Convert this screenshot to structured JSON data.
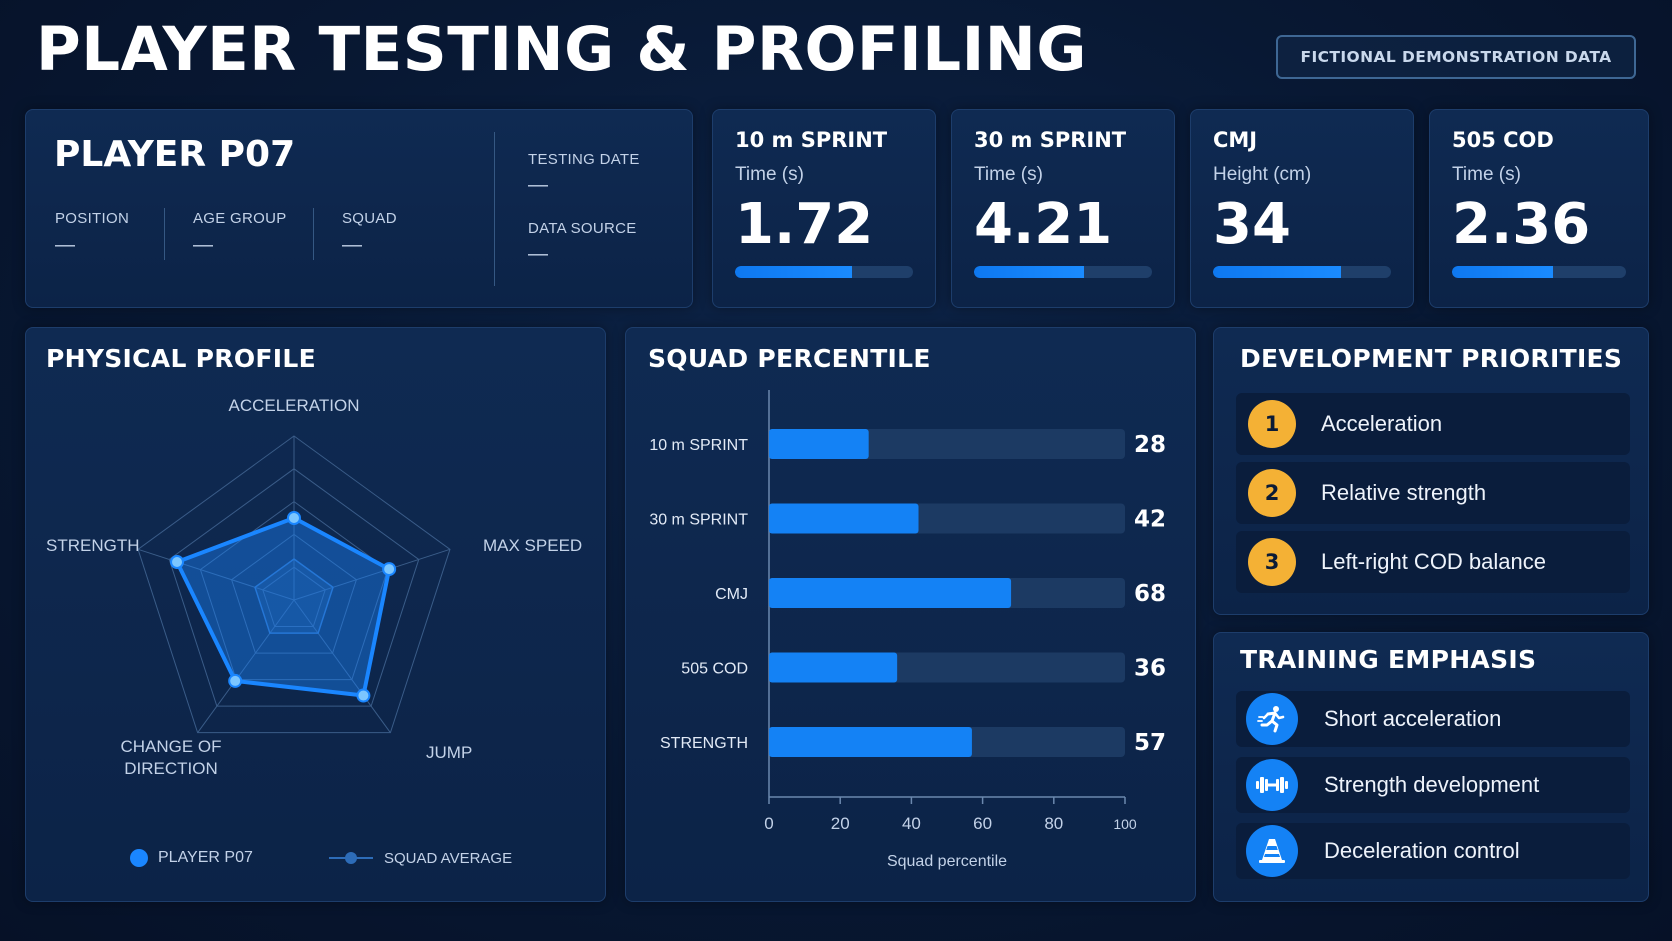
{
  "header": {
    "title": "PLAYER TESTING & PROFILING",
    "disclaimer": "FICTIONAL DEMONSTRATION DATA"
  },
  "player": {
    "name": "PLAYER P07",
    "position_label": "POSITION",
    "position_value": "—",
    "age_group_label": "AGE GROUP",
    "age_group_value": "—",
    "squad_label": "SQUAD",
    "squad_value": "—",
    "testing_date_label": "TESTING DATE",
    "testing_date_value": "—",
    "data_source_label": "DATA SOURCE",
    "data_source_value": "—"
  },
  "metrics": [
    {
      "title": "10 m SPRINT",
      "unit": "Time (s)",
      "value": "1.72",
      "bar_fraction": 0.66
    },
    {
      "title": "30 m SPRINT",
      "unit": "Time (s)",
      "value": "4.21",
      "bar_fraction": 0.62
    },
    {
      "title": "CMJ",
      "unit": "Height (cm)",
      "value": "34",
      "bar_fraction": 0.72
    },
    {
      "title": "505 COD",
      "unit": "Time (s)",
      "value": "2.36",
      "bar_fraction": 0.58
    }
  ],
  "physical_profile": {
    "title": "PHYSICAL PROFILE",
    "axes": [
      "ACCELERATION",
      "MAX SPEED",
      "JUMP",
      "CHANGE OF\nDIRECTION",
      "STRENGTH"
    ],
    "player_values": [
      0.5,
      0.61,
      0.72,
      0.61,
      0.75
    ],
    "squad_values": [
      0.25,
      0.25,
      0.25,
      0.25,
      0.25
    ],
    "legend_player": "PLAYER P07",
    "legend_squad": "SQUAD AVERAGE",
    "colors": {
      "player": "#1a86ff",
      "squad": "#2d6cb8"
    }
  },
  "squad_percentile": {
    "title": "SQUAD PERCENTILE",
    "xlabel": "Squad percentile",
    "ticks": [
      "0",
      "20",
      "40",
      "60",
      "80",
      "100"
    ]
  },
  "chart_data": {
    "type": "bar",
    "orientation": "horizontal",
    "categories": [
      "10 m SPRINT",
      "30 m SPRINT",
      "CMJ",
      "505 COD",
      "STRENGTH"
    ],
    "values": [
      28,
      42,
      68,
      36,
      57
    ],
    "value_labels": [
      "28",
      "42",
      "68",
      "36",
      "57"
    ],
    "xlabel": "Squad percentile",
    "xlim": [
      0,
      100
    ],
    "grid": false
  },
  "development": {
    "title": "DEVELOPMENT PRIORITIES",
    "items": [
      {
        "num": "1",
        "label": "Acceleration"
      },
      {
        "num": "2",
        "label": "Relative strength"
      },
      {
        "num": "3",
        "label": "Left-right COD balance"
      }
    ]
  },
  "training": {
    "title": "TRAINING EMPHASIS",
    "items": [
      {
        "icon": "runner-icon",
        "label": "Short acceleration"
      },
      {
        "icon": "dumbbell-icon",
        "label": "Strength development"
      },
      {
        "icon": "cone-icon",
        "label": "Deceleration control"
      }
    ]
  }
}
